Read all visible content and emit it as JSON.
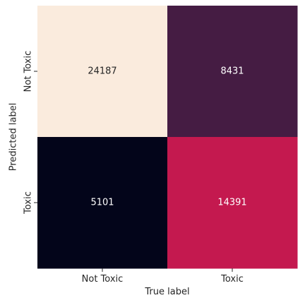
{
  "chart_data": {
    "type": "heatmap",
    "title": "",
    "xlabel": "True label",
    "ylabel": "Predicted label",
    "x_categories": [
      "Not Toxic",
      "Toxic"
    ],
    "y_categories": [
      "Not Toxic",
      "Toxic"
    ],
    "values": [
      [
        24187,
        8431
      ],
      [
        5101,
        14391
      ]
    ],
    "cell_colors": [
      [
        "#faebdd",
        "#451c43"
      ],
      [
        "#03051a",
        "#c4194f"
      ]
    ],
    "cell_text_colors": [
      [
        "#262626",
        "#ffffff"
      ],
      [
        "#ffffff",
        "#ffffff"
      ]
    ],
    "colorbar": false,
    "grid": false
  }
}
